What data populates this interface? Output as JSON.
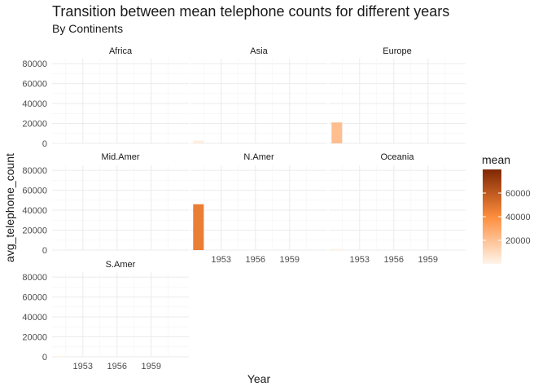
{
  "chart_data": {
    "type": "bar",
    "title": "Transition between mean telephone counts for different years",
    "subtitle": "By Continents",
    "xlabel": "Year",
    "ylabel": "avg_telephone_count",
    "x_ticks": [
      "1953",
      "1956",
      "1959"
    ],
    "x_tick_values": [
      1953,
      1956,
      1959
    ],
    "xlim": [
      1950.3,
      1962.3
    ],
    "ylim": [
      0,
      85000
    ],
    "y_ticks": [
      "0",
      "20000",
      "40000",
      "60000",
      "80000"
    ],
    "y_tick_values": [
      0,
      20000,
      40000,
      60000,
      80000
    ],
    "legend": {
      "title": "mean",
      "position": "right",
      "ticks": [
        "20000",
        "40000",
        "60000"
      ],
      "tick_values": [
        20000,
        40000,
        60000
      ],
      "range": [
        0,
        80000
      ],
      "low_color": "#fff5eb",
      "mid_color": "#fd8d3c",
      "high_color": "#7f2704"
    },
    "facets": [
      {
        "name": "Africa",
        "years": [
          1951
        ],
        "values": [
          400
        ]
      },
      {
        "name": "Asia",
        "years": [
          1951
        ],
        "values": [
          2800
        ]
      },
      {
        "name": "Europe",
        "years": [
          1951
        ],
        "values": [
          21000
        ]
      },
      {
        "name": "Mid.Amer",
        "years": [
          1951
        ],
        "values": [
          300
        ]
      },
      {
        "name": "N.Amer",
        "years": [
          1951
        ],
        "values": [
          46000
        ]
      },
      {
        "name": "Oceania",
        "years": [
          1951
        ],
        "values": [
          1200
        ]
      },
      {
        "name": "S.Amer",
        "years": [
          1951
        ],
        "values": [
          900
        ]
      }
    ]
  }
}
